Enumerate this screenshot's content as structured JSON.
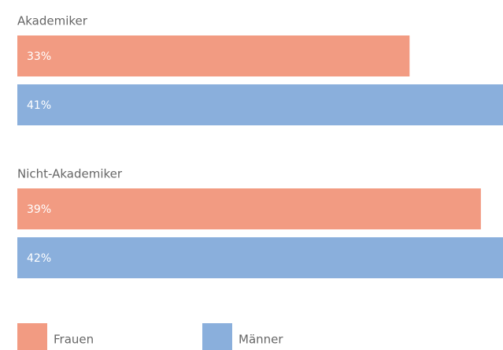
{
  "chart_data": {
    "type": "bar",
    "orientation": "horizontal",
    "categories": [
      "Akademiker",
      "Nicht-Akademiker"
    ],
    "series": [
      {
        "name": "Frauen",
        "color": "#f29b82",
        "values": [
          33,
          39
        ],
        "value_labels": [
          "33%",
          "39%"
        ]
      },
      {
        "name": "Männer",
        "color": "#8aafdc",
        "values": [
          41,
          42
        ],
        "value_labels": [
          "41%",
          "42%"
        ]
      }
    ]
  }
}
